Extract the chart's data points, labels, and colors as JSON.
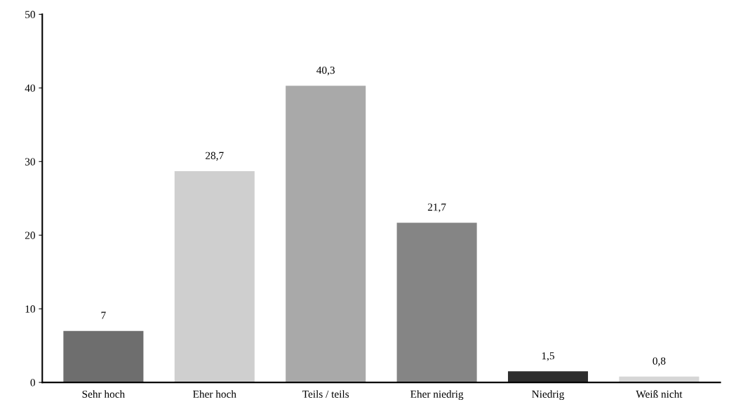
{
  "chart_data": {
    "type": "bar",
    "categories": [
      "Sehr hoch",
      "Eher hoch",
      "Teils / teils",
      "Eher niedrig",
      "Niedrig",
      "Weiß nicht"
    ],
    "values": [
      7,
      28.7,
      40.3,
      21.7,
      1.5,
      0.8
    ],
    "colors": [
      "#6e6e6e",
      "#cfcfcf",
      "#a9a9a9",
      "#858585",
      "#2e2e2e",
      "#d6d6d6"
    ],
    "value_labels": [
      "7",
      "28,7",
      "40,3",
      "21,7",
      "1,5",
      "0,8"
    ],
    "ylim": [
      0,
      50
    ],
    "yticks": [
      0,
      10,
      20,
      30,
      40,
      50
    ],
    "grid": false,
    "legend": false
  }
}
